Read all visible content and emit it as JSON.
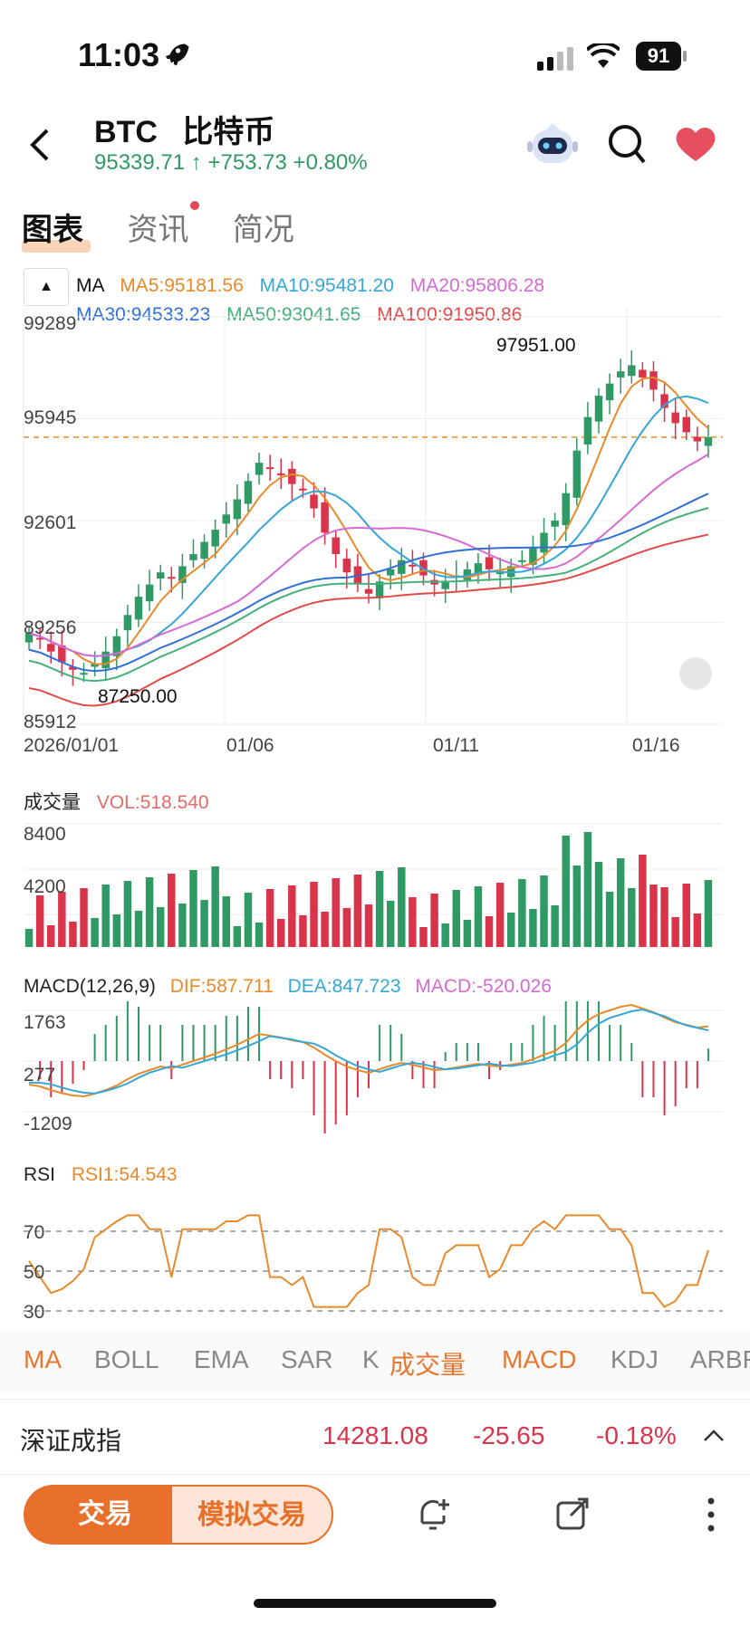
{
  "status": {
    "time": "11:03",
    "battery": "91"
  },
  "header": {
    "symbol": "BTC",
    "name": "比特币",
    "price": "95339.71",
    "change": "+753.73",
    "change_pct": "+0.80%"
  },
  "tabs": [
    {
      "label": "图表"
    },
    {
      "label": "资讯"
    },
    {
      "label": "简况"
    }
  ],
  "ma_legend": {
    "title": "MA",
    "ma5": "MA5:95181.56",
    "ma10": "MA10:95481.20",
    "ma20": "MA20:95806.28",
    "ma30": "MA30:94533.23",
    "ma50": "MA50:93041.65",
    "ma100": "MA100:91950.86"
  },
  "colors": {
    "ma5": "#e88a2a",
    "ma10": "#35a6d8",
    "ma20": "#d56ad3",
    "ma30": "#2f6fd6",
    "ma50": "#45b07a",
    "ma100": "#e24a4a",
    "up": "#2f9a64",
    "down": "#d9344a",
    "accent": "#e8702a"
  },
  "chart": {
    "y_ticks": [
      "99289",
      "95945",
      "92601",
      "89256",
      "85912"
    ],
    "x_ticks": [
      "2026/01/01",
      "01/06",
      "01/11",
      "01/16"
    ],
    "high_label": "97951.00",
    "low_label": "87250.00"
  },
  "volume": {
    "title": "成交量",
    "vol": "VOL:518.540",
    "y_ticks": [
      "8400",
      "4200"
    ]
  },
  "macd": {
    "title": "MACD(12,26,9)",
    "dif": "DIF:587.711",
    "dea": "DEA:847.723",
    "macd": "MACD:-520.026",
    "y_ticks": [
      "1763",
      "277",
      "-1209"
    ]
  },
  "rsi": {
    "title": "RSI",
    "rsi1": "RSI1:54.543",
    "y_ticks": [
      "70",
      "50",
      "30"
    ]
  },
  "indicators": [
    {
      "label": "MA",
      "active": true
    },
    {
      "label": "BOLL",
      "active": false
    },
    {
      "label": "EMA",
      "active": false
    },
    {
      "label": "SAR",
      "active": false
    },
    {
      "label": "K",
      "active": false
    },
    {
      "label": "成交量",
      "active": true
    },
    {
      "label": "MACD",
      "active": true
    },
    {
      "label": "KDJ",
      "active": false
    },
    {
      "label": "ARBR",
      "active": false
    }
  ],
  "ticker": {
    "name": "深证成指",
    "value": "14281.08",
    "change": "-25.65",
    "pct": "-0.18%"
  },
  "bottom": {
    "trade": "交易",
    "simulate": "模拟交易"
  },
  "icons": {
    "back": "chevron-left-icon",
    "robot": "robot-icon",
    "search": "search-icon",
    "favorite": "heart-icon",
    "bell": "bell-plus-icon",
    "share": "share-icon",
    "more": "more-vertical-icon"
  },
  "chart_data": {
    "type": "candlestick",
    "x_labels": [
      "2026/01/01",
      "01/06",
      "01/11",
      "01/16"
    ],
    "ylim": [
      85912,
      99289
    ],
    "close": [
      88900,
      88700,
      88300,
      87950,
      87700,
      87600,
      87900,
      88300,
      88800,
      89500,
      90100,
      90500,
      90900,
      90700,
      91100,
      91500,
      91900,
      92300,
      92800,
      93300,
      93900,
      94500,
      94300,
      94100,
      93800,
      93600,
      93000,
      92200,
      91500,
      90900,
      90500,
      90200,
      90600,
      91000,
      91300,
      91100,
      90800,
      90500,
      90600,
      90800,
      91000,
      91200,
      91000,
      90900,
      91100,
      91300,
      91700,
      92200,
      92600,
      93500,
      94900,
      96000,
      96700,
      97100,
      97500,
      97700,
      97300,
      96900,
      96300,
      95800,
      95500,
      95200,
      95339
    ]
  }
}
